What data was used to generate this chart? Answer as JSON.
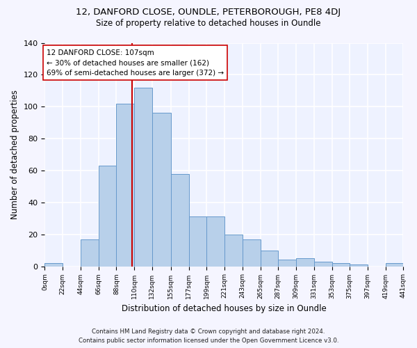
{
  "title": "12, DANFORD CLOSE, OUNDLE, PETERBOROUGH, PE8 4DJ",
  "subtitle": "Size of property relative to detached houses in Oundle",
  "xlabel": "Distribution of detached houses by size in Oundle",
  "ylabel": "Number of detached properties",
  "bin_edges": [
    0,
    22,
    44,
    66,
    88,
    110,
    132,
    155,
    177,
    199,
    221,
    243,
    265,
    287,
    309,
    331,
    353,
    375,
    397,
    419,
    441
  ],
  "bar_heights": [
    2,
    0,
    17,
    63,
    102,
    112,
    96,
    58,
    31,
    31,
    20,
    17,
    10,
    4,
    5,
    3,
    2,
    1,
    0,
    2
  ],
  "bar_color": "#b8d0ea",
  "bar_edge_color": "#6699cc",
  "property_value": 107,
  "vline_color": "#cc0000",
  "annotation_text": "12 DANFORD CLOSE: 107sqm\n← 30% of detached houses are smaller (162)\n69% of semi-detached houses are larger (372) →",
  "annotation_box_color": "#ffffff",
  "annotation_box_edge_color": "#cc0000",
  "ylim": [
    0,
    140
  ],
  "tick_labels": [
    "0sqm",
    "22sqm",
    "44sqm",
    "66sqm",
    "88sqm",
    "110sqm",
    "132sqm",
    "155sqm",
    "177sqm",
    "199sqm",
    "221sqm",
    "243sqm",
    "265sqm",
    "287sqm",
    "309sqm",
    "331sqm",
    "353sqm",
    "375sqm",
    "397sqm",
    "419sqm",
    "441sqm"
  ],
  "footer_line1": "Contains HM Land Registry data © Crown copyright and database right 2024.",
  "footer_line2": "Contains public sector information licensed under the Open Government Licence v3.0.",
  "bg_color": "#eef2ff",
  "grid_color": "#ffffff",
  "fig_bg_color": "#f5f5ff"
}
